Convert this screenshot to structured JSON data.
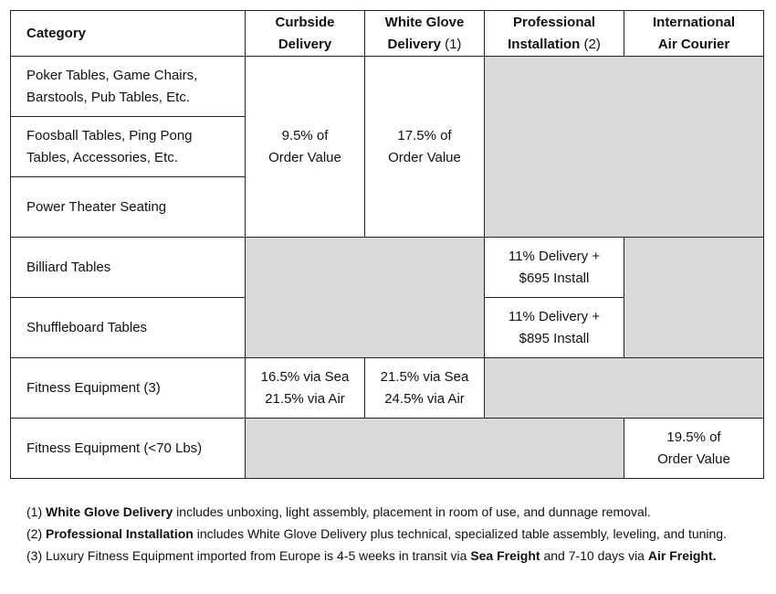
{
  "headers": {
    "category": "Category",
    "curbside": [
      "Curbside",
      "Delivery"
    ],
    "white_glove": [
      "White Glove",
      "Delivery",
      "(1)"
    ],
    "professional": [
      "Professional",
      "Installation",
      "(2)"
    ],
    "international": [
      "International",
      "Air Courier"
    ]
  },
  "rows": {
    "poker": [
      "Poker Tables, Game Chairs,",
      "Barstools, Pub Tables, Etc."
    ],
    "foosball": [
      "Foosball Tables, Ping Pong",
      "Tables, Accessories, Etc."
    ],
    "theater": "Power Theater Seating",
    "billiard": "Billiard Tables",
    "shuffleboard": "Shuffleboard Tables",
    "fitness": "Fitness Equipment (3)",
    "fitness_light": "Fitness Equipment (<70 Lbs)"
  },
  "values": {
    "group_curbside": [
      "9.5% of",
      "Order Value"
    ],
    "group_white_glove": [
      "17.5% of",
      "Order Value"
    ],
    "billiard_install": [
      "11% Delivery +",
      "$695 Install"
    ],
    "shuffleboard_install": [
      "11% Delivery +",
      "$895 Install"
    ],
    "fitness_curbside": [
      "16.5% via Sea",
      "21.5% via Air"
    ],
    "fitness_white_glove": [
      "21.5% via Sea",
      "24.5% via Air"
    ],
    "fitness_light_air": [
      "19.5% of",
      "Order Value"
    ]
  },
  "notes": [
    {
      "prefix": "(1) ",
      "bold": "White Glove Delivery",
      "text": " includes unboxing, light assembly, placement in room of use, and dunnage removal."
    },
    {
      "prefix": "(2) ",
      "bold": "Professional Installation",
      "text": " includes White Glove Delivery plus technical, specialized table assembly, leveling, and tuning."
    },
    {
      "prefix": "(3) ",
      "text_a": "Luxury Fitness Equipment imported from Europe is 4-5 weeks in transit via ",
      "bold_a": "Sea Freight",
      "text_b": " and 7-10 days via ",
      "bold_b": "Air Freight."
    }
  ],
  "colors": {
    "shaded_cell": "#d9d9d9",
    "border": "#222222"
  }
}
